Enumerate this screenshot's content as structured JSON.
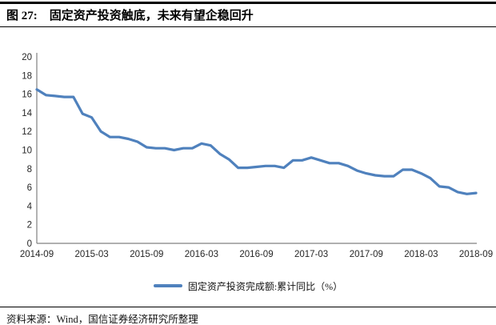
{
  "title": "图 27:　固定资产投资触底，未来有望企稳回升",
  "source_note": "资料来源：Wind，国信证券经济研究所整理",
  "legend": {
    "label": "固定资产投资完成额:累计同比（%）"
  },
  "colors": {
    "line": "#4F81BD",
    "axis": "#808080",
    "tick_text": "#262626",
    "rule": "#000000"
  },
  "chart_data": {
    "type": "line",
    "title": "",
    "xlabel": "",
    "ylabel": "",
    "ylim": [
      0,
      20
    ],
    "y_ticks": [
      0,
      2,
      4,
      6,
      8,
      10,
      12,
      14,
      16,
      18,
      20
    ],
    "grid": false,
    "legend_position": "bottom",
    "x_tick_indices": [
      0,
      6,
      12,
      18,
      24,
      30,
      36,
      42,
      48
    ],
    "x_tick_labels": [
      "2014-09",
      "2015-03",
      "2015-09",
      "2016-03",
      "2016-09",
      "2017-03",
      "2017-09",
      "2018-03",
      "2018-09"
    ],
    "categories": [
      "2014-09",
      "2014-10",
      "2014-11",
      "2014-12",
      "2015-01",
      "2015-02",
      "2015-03",
      "2015-04",
      "2015-05",
      "2015-06",
      "2015-07",
      "2015-08",
      "2015-09",
      "2015-10",
      "2015-11",
      "2015-12",
      "2016-01",
      "2016-02",
      "2016-03",
      "2016-04",
      "2016-05",
      "2016-06",
      "2016-07",
      "2016-08",
      "2016-09",
      "2016-10",
      "2016-11",
      "2016-12",
      "2017-01",
      "2017-02",
      "2017-03",
      "2017-04",
      "2017-05",
      "2017-06",
      "2017-07",
      "2017-08",
      "2017-09",
      "2017-10",
      "2017-11",
      "2017-12",
      "2018-01",
      "2018-02",
      "2018-03",
      "2018-04",
      "2018-05",
      "2018-06",
      "2018-07",
      "2018-08",
      "2018-09"
    ],
    "series": [
      {
        "name": "固定资产投资完成额:累计同比（%）",
        "values": [
          16.5,
          15.9,
          15.8,
          15.7,
          15.7,
          13.9,
          13.5,
          12.0,
          11.4,
          11.4,
          11.2,
          10.9,
          10.3,
          10.2,
          10.2,
          10.0,
          10.2,
          10.2,
          10.7,
          10.5,
          9.6,
          9.0,
          8.1,
          8.1,
          8.2,
          8.3,
          8.3,
          8.1,
          8.9,
          8.9,
          9.2,
          8.9,
          8.6,
          8.6,
          8.3,
          7.8,
          7.5,
          7.3,
          7.2,
          7.2,
          7.9,
          7.9,
          7.5,
          7.0,
          6.1,
          6.0,
          5.5,
          5.3,
          5.4
        ]
      }
    ]
  }
}
